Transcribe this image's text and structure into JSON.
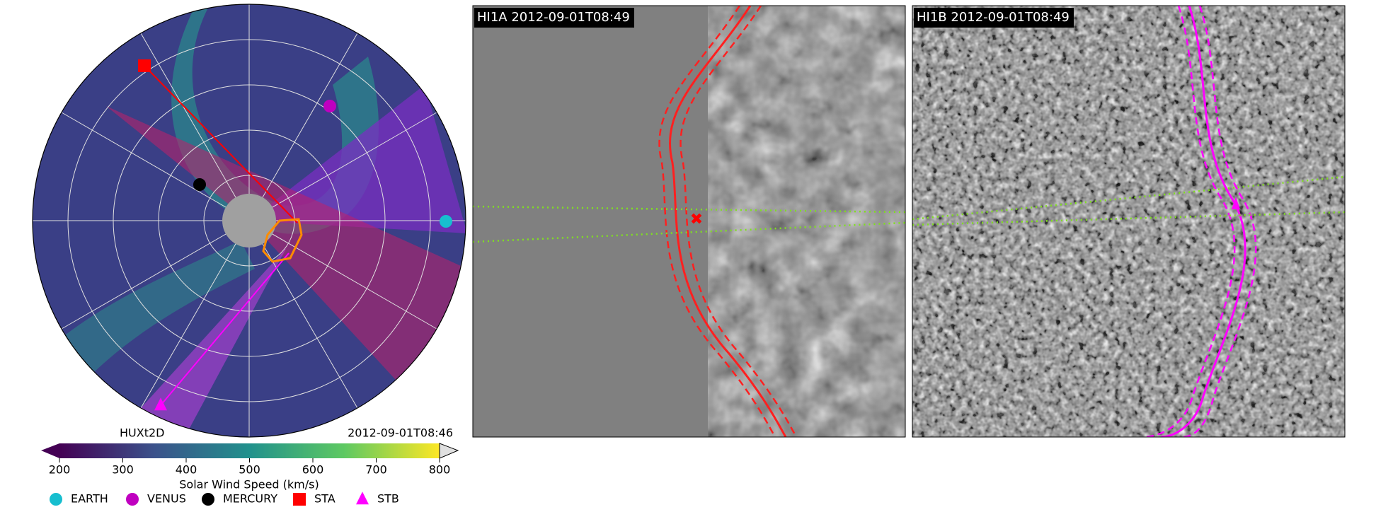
{
  "polar_panel": {
    "model": "HUXt2D",
    "time": "2012-09-01T08:46",
    "colorbar": {
      "label": "Solar Wind Speed (km/s)",
      "lim": [
        200,
        800
      ],
      "ticks": [
        200,
        300,
        400,
        500,
        600,
        700,
        800
      ]
    }
  },
  "legend": [
    {
      "name": "EARTH",
      "color": "#17becf",
      "marker": "circle"
    },
    {
      "name": "VENUS",
      "color": "#c000c0",
      "marker": "circle"
    },
    {
      "name": "MERCURY",
      "color": "#000000",
      "marker": "circle"
    },
    {
      "name": "STA",
      "color": "#ff0000",
      "marker": "square"
    },
    {
      "name": "STB",
      "color": "#ff00ff",
      "marker": "triangle"
    }
  ],
  "images": [
    {
      "label": "HI1A 2012-09-01T08:49"
    },
    {
      "label": "HI1B 2012-09-01T08:49"
    }
  ]
}
